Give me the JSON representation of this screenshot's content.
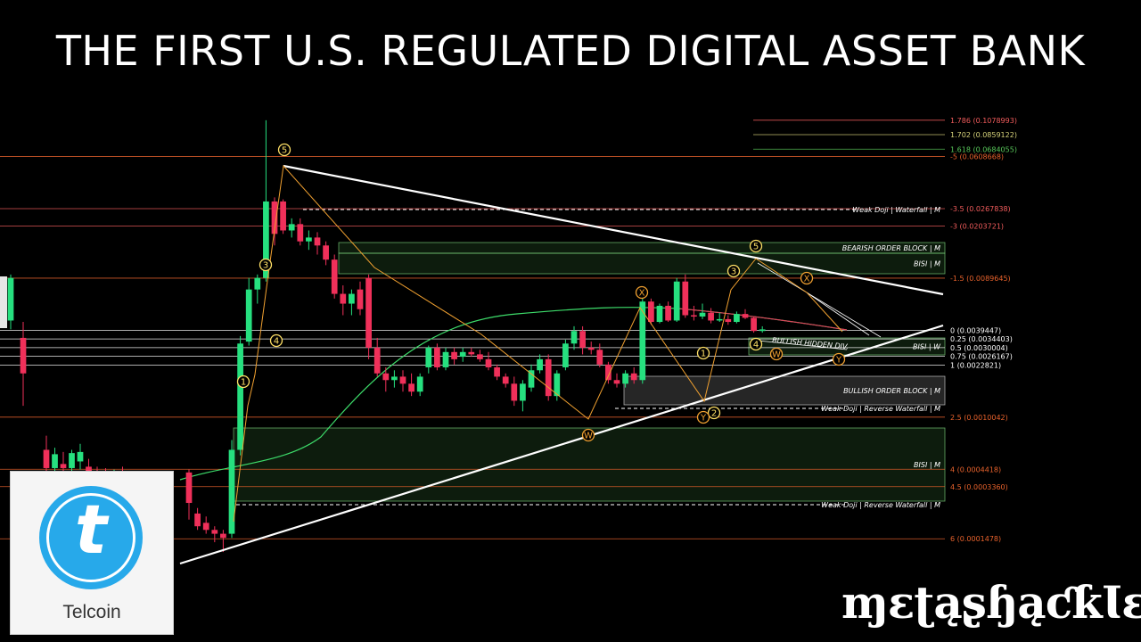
{
  "title": "THE FIRST U.S. REGULATED DIGITAL ASSET BANK",
  "logo": {
    "icon": "telcoin-t-icon",
    "glyph": "t",
    "label": "Telcoin",
    "color": "#27a9ea"
  },
  "brand": "ɱɛʈąʂɧąƈƙƖɛ",
  "chart_data": {
    "type": "candlestick",
    "colors": {
      "bull": "#26e07f",
      "bear": "#f0305a",
      "fib_orange": "#e8622c",
      "fib_ext": "#f25c5c"
    },
    "candles": [
      {
        "o": 0.0046,
        "h": 0.0095,
        "l": 0.004,
        "c": 0.009
      },
      {
        "o": 0.0035,
        "h": 0.0045,
        "l": 0.0012,
        "c": 0.002
      },
      {
        "o": 0.0006,
        "h": 0.00075,
        "l": 0.00042,
        "c": 0.00045
      },
      {
        "o": 0.00045,
        "h": 0.00062,
        "l": 0.0004,
        "c": 0.00056
      },
      {
        "o": 0.00048,
        "h": 0.00058,
        "l": 0.0004,
        "c": 0.00045
      },
      {
        "o": 0.00045,
        "h": 0.0006,
        "l": 0.00043,
        "c": 0.00057
      },
      {
        "o": 0.0005,
        "h": 0.00066,
        "l": 0.00044,
        "c": 0.00058
      },
      {
        "o": 0.00046,
        "h": 0.00052,
        "l": 0.00042,
        "c": 0.00043
      },
      {
        "o": 0.00043,
        "h": 0.00046,
        "l": 0.0004,
        "c": 0.00042
      },
      {
        "o": 0.00042,
        "h": 0.00045,
        "l": 0.0004,
        "c": 0.00041
      },
      {
        "o": 0.00041,
        "h": 0.00044,
        "l": 0.00039,
        "c": 0.00042
      },
      {
        "o": 0.00038,
        "h": 0.00046,
        "l": 0.00012,
        "c": 0.00015
      },
      {
        "o": 0.00042,
        "h": 0.00044,
        "l": 0.0002,
        "c": 0.00026
      },
      {
        "o": 0.00022,
        "h": 0.00024,
        "l": 0.00017,
        "c": 0.00018
      },
      {
        "o": 0.00019,
        "h": 0.00021,
        "l": 0.00016,
        "c": 0.00017
      },
      {
        "o": 0.00017,
        "h": 0.00018,
        "l": 0.00014,
        "c": 0.00016
      },
      {
        "o": 0.00016,
        "h": 0.00017,
        "l": 0.00012,
        "c": 0.00015
      },
      {
        "o": 0.00016,
        "h": 0.0007,
        "l": 0.00015,
        "c": 0.0006
      },
      {
        "o": 0.0006,
        "h": 0.0036,
        "l": 0.00055,
        "c": 0.0032
      },
      {
        "o": 0.0033,
        "h": 0.009,
        "l": 0.0031,
        "c": 0.0075
      },
      {
        "o": 0.0075,
        "h": 0.0095,
        "l": 0.006,
        "c": 0.009
      },
      {
        "o": 0.009,
        "h": 0.1078,
        "l": 0.0085,
        "c": 0.03
      },
      {
        "o": 0.03,
        "h": 0.032,
        "l": 0.015,
        "c": 0.018
      },
      {
        "o": 0.03,
        "h": 0.031,
        "l": 0.018,
        "c": 0.019
      },
      {
        "o": 0.019,
        "h": 0.023,
        "l": 0.017,
        "c": 0.021
      },
      {
        "o": 0.021,
        "h": 0.023,
        "l": 0.015,
        "c": 0.016
      },
      {
        "o": 0.016,
        "h": 0.019,
        "l": 0.014,
        "c": 0.017
      },
      {
        "o": 0.017,
        "h": 0.0185,
        "l": 0.013,
        "c": 0.015
      },
      {
        "o": 0.015,
        "h": 0.016,
        "l": 0.011,
        "c": 0.012
      },
      {
        "o": 0.012,
        "h": 0.013,
        "l": 0.0065,
        "c": 0.007
      },
      {
        "o": 0.007,
        "h": 0.008,
        "l": 0.005,
        "c": 0.006
      },
      {
        "o": 0.006,
        "h": 0.0075,
        "l": 0.005,
        "c": 0.007
      },
      {
        "o": 0.0075,
        "h": 0.0085,
        "l": 0.005,
        "c": 0.0055
      },
      {
        "o": 0.009,
        "h": 0.0095,
        "l": 0.0025,
        "c": 0.003
      },
      {
        "o": 0.003,
        "h": 0.0035,
        "l": 0.0019,
        "c": 0.002
      },
      {
        "o": 0.002,
        "h": 0.0022,
        "l": 0.0015,
        "c": 0.0018
      },
      {
        "o": 0.0018,
        "h": 0.0021,
        "l": 0.0016,
        "c": 0.0019
      },
      {
        "o": 0.0019,
        "h": 0.0021,
        "l": 0.0015,
        "c": 0.0017
      },
      {
        "o": 0.0017,
        "h": 0.002,
        "l": 0.0014,
        "c": 0.0015
      },
      {
        "o": 0.0015,
        "h": 0.002,
        "l": 0.0014,
        "c": 0.0019
      },
      {
        "o": 0.0022,
        "h": 0.0031,
        "l": 0.002,
        "c": 0.003
      },
      {
        "o": 0.003,
        "h": 0.0032,
        "l": 0.0021,
        "c": 0.0022
      },
      {
        "o": 0.0022,
        "h": 0.003,
        "l": 0.0021,
        "c": 0.0028
      },
      {
        "o": 0.0028,
        "h": 0.003,
        "l": 0.0023,
        "c": 0.0025
      },
      {
        "o": 0.0026,
        "h": 0.003,
        "l": 0.0024,
        "c": 0.0028
      },
      {
        "o": 0.0028,
        "h": 0.003,
        "l": 0.0026,
        "c": 0.0027
      },
      {
        "o": 0.0027,
        "h": 0.0029,
        "l": 0.0024,
        "c": 0.0025
      },
      {
        "o": 0.0025,
        "h": 0.0028,
        "l": 0.0021,
        "c": 0.0022
      },
      {
        "o": 0.0022,
        "h": 0.0023,
        "l": 0.0018,
        "c": 0.0019
      },
      {
        "o": 0.0019,
        "h": 0.002,
        "l": 0.0016,
        "c": 0.0017
      },
      {
        "o": 0.0017,
        "h": 0.0019,
        "l": 0.0012,
        "c": 0.0013
      },
      {
        "o": 0.0013,
        "h": 0.0018,
        "l": 0.0011,
        "c": 0.0017
      },
      {
        "o": 0.0016,
        "h": 0.0023,
        "l": 0.0015,
        "c": 0.0021
      },
      {
        "o": 0.0021,
        "h": 0.0027,
        "l": 0.002,
        "c": 0.0025
      },
      {
        "o": 0.0025,
        "h": 0.0027,
        "l": 0.0013,
        "c": 0.0014
      },
      {
        "o": 0.0014,
        "h": 0.0021,
        "l": 0.0013,
        "c": 0.002
      },
      {
        "o": 0.0022,
        "h": 0.0034,
        "l": 0.0021,
        "c": 0.0032
      },
      {
        "o": 0.0032,
        "h": 0.0042,
        "l": 0.0029,
        "c": 0.0039
      },
      {
        "o": 0.0039,
        "h": 0.0042,
        "l": 0.0027,
        "c": 0.003
      },
      {
        "o": 0.003,
        "h": 0.0033,
        "l": 0.0027,
        "c": 0.0029
      },
      {
        "o": 0.0029,
        "h": 0.0032,
        "l": 0.0022,
        "c": 0.0023
      },
      {
        "o": 0.0023,
        "h": 0.0024,
        "l": 0.0017,
        "c": 0.0018
      },
      {
        "o": 0.0018,
        "h": 0.002,
        "l": 0.0016,
        "c": 0.0017
      },
      {
        "o": 0.0017,
        "h": 0.0021,
        "l": 0.0016,
        "c": 0.002
      },
      {
        "o": 0.002,
        "h": 0.0022,
        "l": 0.0017,
        "c": 0.0018
      },
      {
        "o": 0.0018,
        "h": 0.0065,
        "l": 0.0017,
        "c": 0.0062
      },
      {
        "o": 0.0062,
        "h": 0.0065,
        "l": 0.0043,
        "c": 0.0045
      },
      {
        "o": 0.0045,
        "h": 0.006,
        "l": 0.0044,
        "c": 0.0058
      },
      {
        "o": 0.0058,
        "h": 0.0062,
        "l": 0.0045,
        "c": 0.0046
      },
      {
        "o": 0.0046,
        "h": 0.009,
        "l": 0.0045,
        "c": 0.0085
      },
      {
        "o": 0.0085,
        "h": 0.0095,
        "l": 0.0048,
        "c": 0.005
      },
      {
        "o": 0.005,
        "h": 0.0058,
        "l": 0.0046,
        "c": 0.0049
      },
      {
        "o": 0.0049,
        "h": 0.006,
        "l": 0.0047,
        "c": 0.0052
      },
      {
        "o": 0.0052,
        "h": 0.0056,
        "l": 0.0044,
        "c": 0.0046
      },
      {
        "o": 0.0046,
        "h": 0.0052,
        "l": 0.0045,
        "c": 0.0047
      },
      {
        "o": 0.0047,
        "h": 0.005,
        "l": 0.0043,
        "c": 0.0045
      },
      {
        "o": 0.0045,
        "h": 0.0053,
        "l": 0.0044,
        "c": 0.0051
      },
      {
        "o": 0.0051,
        "h": 0.0055,
        "l": 0.0047,
        "c": 0.0048
      },
      {
        "o": 0.0048,
        "h": 0.0049,
        "l": 0.0038,
        "c": 0.0039
      },
      {
        "o": 0.0039,
        "h": 0.0042,
        "l": 0.0038,
        "c": 0.004
      }
    ],
    "fib_levels": [
      {
        "label": "1.786 (0.1078993)",
        "value": 0.1078993,
        "color": "#f25c5c"
      },
      {
        "label": "1.702 (0.0859122)",
        "value": 0.0859122,
        "color": "#d6d27a"
      },
      {
        "label": "1.618 (0.0684055)",
        "value": 0.0684055,
        "color": "#58c85a"
      },
      {
        "label": "-5 (0.0608668)",
        "value": 0.0608668,
        "color": "#e8622c"
      },
      {
        "label": "-3.5 (0.0267838)",
        "value": 0.0267838,
        "color": "#f25c5c"
      },
      {
        "label": "-3 (0.0203721)",
        "value": 0.0203721,
        "color": "#f25c5c"
      },
      {
        "label": "-1.5 (0.0089645)",
        "value": 0.0089645,
        "color": "#e8622c"
      },
      {
        "label": "0 (0.0039447)",
        "value": 0.0039447,
        "color": "#ffffff"
      },
      {
        "label": "0.25 (0.0034403)",
        "value": 0.0034403,
        "color": "#ffffff"
      },
      {
        "label": "0.5 (0.0030004)",
        "value": 0.0030004,
        "color": "#ffffff"
      },
      {
        "label": "0.75 (0.0026167)",
        "value": 0.0026167,
        "color": "#ffffff"
      },
      {
        "label": "1 (0.0022821)",
        "value": 0.0022821,
        "color": "#ffffff"
      },
      {
        "label": "2.5 (0.0010042)",
        "value": 0.0010042,
        "color": "#e8622c"
      },
      {
        "label": "4 (0.0004418)",
        "value": 0.0004418,
        "color": "#e8622c"
      },
      {
        "label": "4.5 (0.0003360)",
        "value": 0.000336,
        "color": "#e8622c"
      },
      {
        "label": "6 (0.0001478)",
        "value": 0.0001478,
        "color": "#e8622c"
      }
    ],
    "zones": [
      {
        "label": "BEARISH ORDER BLOCK | M",
        "color": "#7bd07b",
        "style": "filled"
      },
      {
        "label": "BISI | M",
        "color": "#7bd07b",
        "style": "filled"
      },
      {
        "label": "BISI | W",
        "color": "#7bd07b",
        "style": "filled"
      },
      {
        "label": "BULLISH ORDER BLOCK | M",
        "color": "#cfcfcf",
        "style": "filled"
      },
      {
        "label": "BISI | M",
        "color": "#7bd07b",
        "style": "filled"
      }
    ],
    "dashed_levels": [
      {
        "label": "Weak Doji | Waterfall | M"
      },
      {
        "label": "Weak Doji | Reverse Waterfall | M"
      },
      {
        "label": "Weak Doji | Reverse Waterfall | M"
      }
    ],
    "wave_labels": [
      "5",
      "3",
      "4",
      "1",
      "5",
      "3",
      "4",
      "X",
      "1",
      "2",
      "Y",
      "W",
      "X",
      "W",
      "Y"
    ],
    "annotations": [
      "BULLISH HIDDEN DIV."
    ]
  }
}
